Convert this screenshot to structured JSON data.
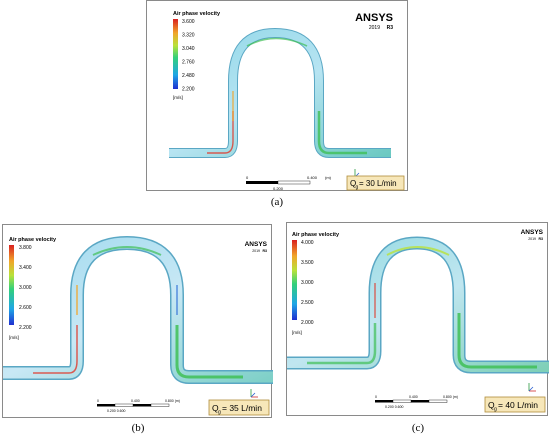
{
  "panels": [
    {
      "id": "a",
      "caption": "(a)",
      "legend_title": "Air phase velocity",
      "ticks": [
        "3.600",
        "3.320",
        "3.040",
        "2.760",
        "2.480",
        "2.200"
      ],
      "unit": "[m/s]",
      "brand": "ANSYS",
      "version": "2019",
      "release": "R3",
      "scale_top": [
        "0",
        "0.400",
        "(m)"
      ],
      "scale_bottom": "0.200",
      "flow_prefix": "Q",
      "flow_sub": "g",
      "flow_value": "= 30 L/min"
    },
    {
      "id": "b",
      "caption": "(b)",
      "legend_title": "Air phase velocity",
      "ticks": [
        "3.800",
        "3.400",
        "3.000",
        "2.600",
        "2.200"
      ],
      "unit": "[m/s]",
      "brand": "ANSYS",
      "version": "2019",
      "release": "R3",
      "scale_top": [
        "0",
        "0.400",
        "0.800 (m)"
      ],
      "scale_bottom": "0.200      0.600",
      "flow_prefix": "Q",
      "flow_sub": "g",
      "flow_value": "= 35 L/min"
    },
    {
      "id": "c",
      "caption": "(c)",
      "legend_title": "Air phase velocity",
      "ticks": [
        "4.000",
        "3.500",
        "3.000",
        "2.500",
        "2.000"
      ],
      "unit": "[m/s]",
      "brand": "ANSYS",
      "version": "2019",
      "release": "R3",
      "scale_top": [
        "0",
        "0.400",
        "0.800 (m)"
      ],
      "scale_bottom": "0.200      0.600",
      "flow_prefix": "Q",
      "flow_sub": "g",
      "flow_value": "= 40 L/min"
    }
  ],
  "colors": {
    "pipe_base": "#7fd0e0",
    "pipe_fill": "#c9e6f2",
    "hot": "#e0382a",
    "mid": "#3fbf56",
    "cool": "#2f6fd6",
    "flow_box": "#f7e7b9"
  }
}
